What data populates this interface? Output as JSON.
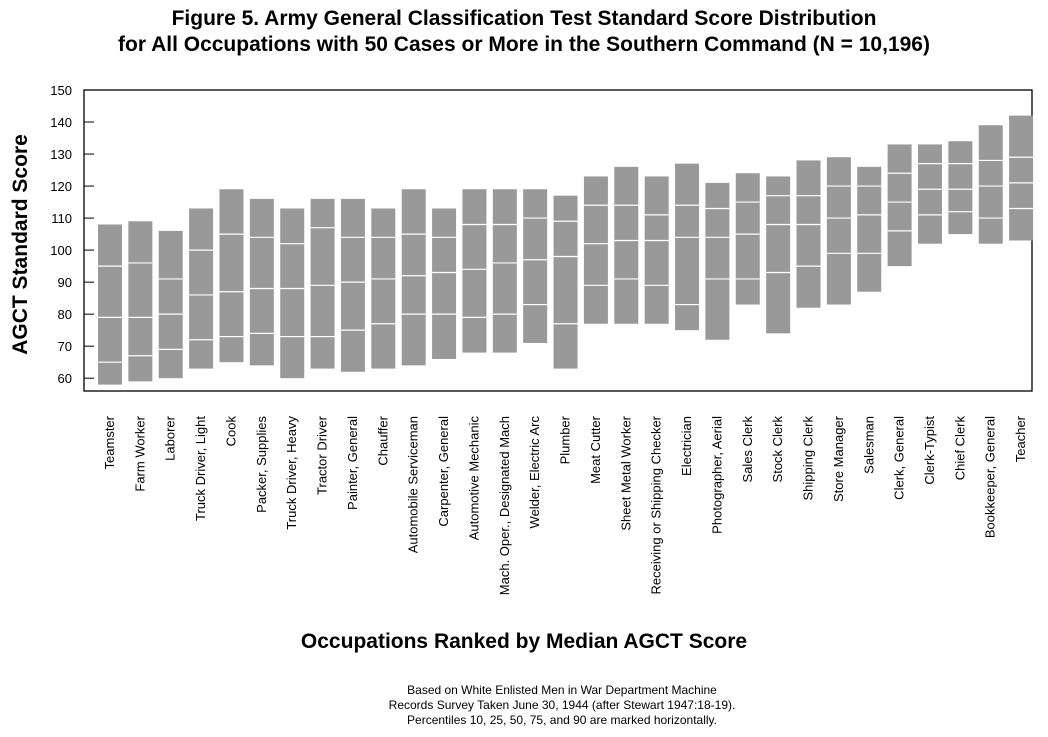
{
  "title_line1": "Figure 5.  Army General Classification Test Standard Score Distribution",
  "title_line2": "for All Occupations with 50 Cases or More in the Southern Command (N = 10,196)",
  "footnote": [
    "Based on White Enlisted Men in War Department Machine",
    "Records Survey Taken June 30, 1944 (after Stewart 1947:18-19).",
    "Percentiles 10, 25, 50, 75, and 90 are marked horizontally."
  ],
  "colors": {
    "box": "#999999",
    "percentile_line": "#ffffff",
    "frame": "#000000"
  },
  "chart_data": {
    "type": "box",
    "xlabel": "Occupations Ranked by  Median  AGCT Score",
    "ylabel": "AGCT Standard Score",
    "ylim": [
      56,
      150
    ],
    "yticks": [
      60,
      70,
      80,
      90,
      100,
      110,
      120,
      130,
      140,
      150
    ],
    "grid": false,
    "percentiles_marked": [
      10,
      25,
      50,
      75,
      90
    ],
    "occupations": [
      {
        "name": "Teamster",
        "min": 58,
        "max": 108,
        "percentiles": [
          65,
          79,
          95
        ]
      },
      {
        "name": "Farm Worker",
        "min": 59,
        "max": 109,
        "percentiles": [
          67,
          79,
          96
        ]
      },
      {
        "name": "Laborer",
        "min": 60,
        "max": 106,
        "percentiles": [
          69,
          80,
          91
        ]
      },
      {
        "name": "Truck Driver, Light",
        "min": 63,
        "max": 113,
        "percentiles": [
          72,
          86,
          100
        ]
      },
      {
        "name": "Cook",
        "min": 65,
        "max": 119,
        "percentiles": [
          73,
          87,
          105
        ]
      },
      {
        "name": "Packer, Supplies",
        "min": 64,
        "max": 116,
        "percentiles": [
          74,
          88,
          104
        ]
      },
      {
        "name": "Truck Driver, Heavy",
        "min": 60,
        "max": 113,
        "percentiles": [
          73,
          88,
          102
        ]
      },
      {
        "name": "Tractor Driver",
        "min": 63,
        "max": 116,
        "percentiles": [
          73,
          89,
          107
        ]
      },
      {
        "name": "Painter, General",
        "min": 62,
        "max": 116,
        "percentiles": [
          75,
          90,
          104
        ]
      },
      {
        "name": "Chauffer",
        "min": 63,
        "max": 113,
        "percentiles": [
          77,
          91,
          104
        ]
      },
      {
        "name": "Automobile Serviceman",
        "min": 64,
        "max": 119,
        "percentiles": [
          80,
          92,
          105
        ]
      },
      {
        "name": "Carpenter, General",
        "min": 66,
        "max": 113,
        "percentiles": [
          80,
          93,
          104
        ]
      },
      {
        "name": "Automotive Mechanic",
        "min": 68,
        "max": 119,
        "percentiles": [
          79,
          94,
          108
        ]
      },
      {
        "name": "Mach. Oper., Designated Mach",
        "min": 68,
        "max": 119,
        "percentiles": [
          80,
          96,
          108
        ]
      },
      {
        "name": "Welder, Electric Arc",
        "min": 71,
        "max": 119,
        "percentiles": [
          83,
          97,
          110
        ]
      },
      {
        "name": "Plumber",
        "min": 63,
        "max": 117,
        "percentiles": [
          77,
          98,
          109
        ]
      },
      {
        "name": "Meat Cutter",
        "min": 77,
        "max": 123,
        "percentiles": [
          89,
          102,
          114
        ]
      },
      {
        "name": "Sheet Metal Worker",
        "min": 77,
        "max": 126,
        "percentiles": [
          91,
          103,
          114
        ]
      },
      {
        "name": "Receiving or Shipping Checker",
        "min": 77,
        "max": 123,
        "percentiles": [
          89,
          103,
          111
        ]
      },
      {
        "name": "Electrician",
        "min": 75,
        "max": 127,
        "percentiles": [
          83,
          104,
          114
        ]
      },
      {
        "name": "Photographer, Aerial",
        "min": 72,
        "max": 121,
        "percentiles": [
          91,
          104,
          113
        ]
      },
      {
        "name": "Sales Clerk",
        "min": 83,
        "max": 124,
        "percentiles": [
          91,
          105,
          115
        ]
      },
      {
        "name": "Stock Clerk",
        "min": 74,
        "max": 123,
        "percentiles": [
          93,
          108,
          117
        ]
      },
      {
        "name": "Shipping Clerk",
        "min": 82,
        "max": 128,
        "percentiles": [
          95,
          108,
          117
        ]
      },
      {
        "name": "Store Manager",
        "min": 83,
        "max": 129,
        "percentiles": [
          99,
          110,
          120
        ]
      },
      {
        "name": "Salesman",
        "min": 87,
        "max": 126,
        "percentiles": [
          99,
          111,
          120
        ]
      },
      {
        "name": "Clerk, General",
        "min": 95,
        "max": 133,
        "percentiles": [
          106,
          115,
          124
        ]
      },
      {
        "name": "Clerk-Typist",
        "min": 102,
        "max": 133,
        "percentiles": [
          111,
          119,
          127
        ]
      },
      {
        "name": "Chief Clerk",
        "min": 105,
        "max": 134,
        "percentiles": [
          112,
          119,
          127
        ]
      },
      {
        "name": "Bookkeeper, General",
        "min": 102,
        "max": 139,
        "percentiles": [
          110,
          120,
          128
        ]
      },
      {
        "name": "Teacher",
        "min": 103,
        "max": 142,
        "percentiles": [
          113,
          121,
          129
        ]
      }
    ]
  }
}
